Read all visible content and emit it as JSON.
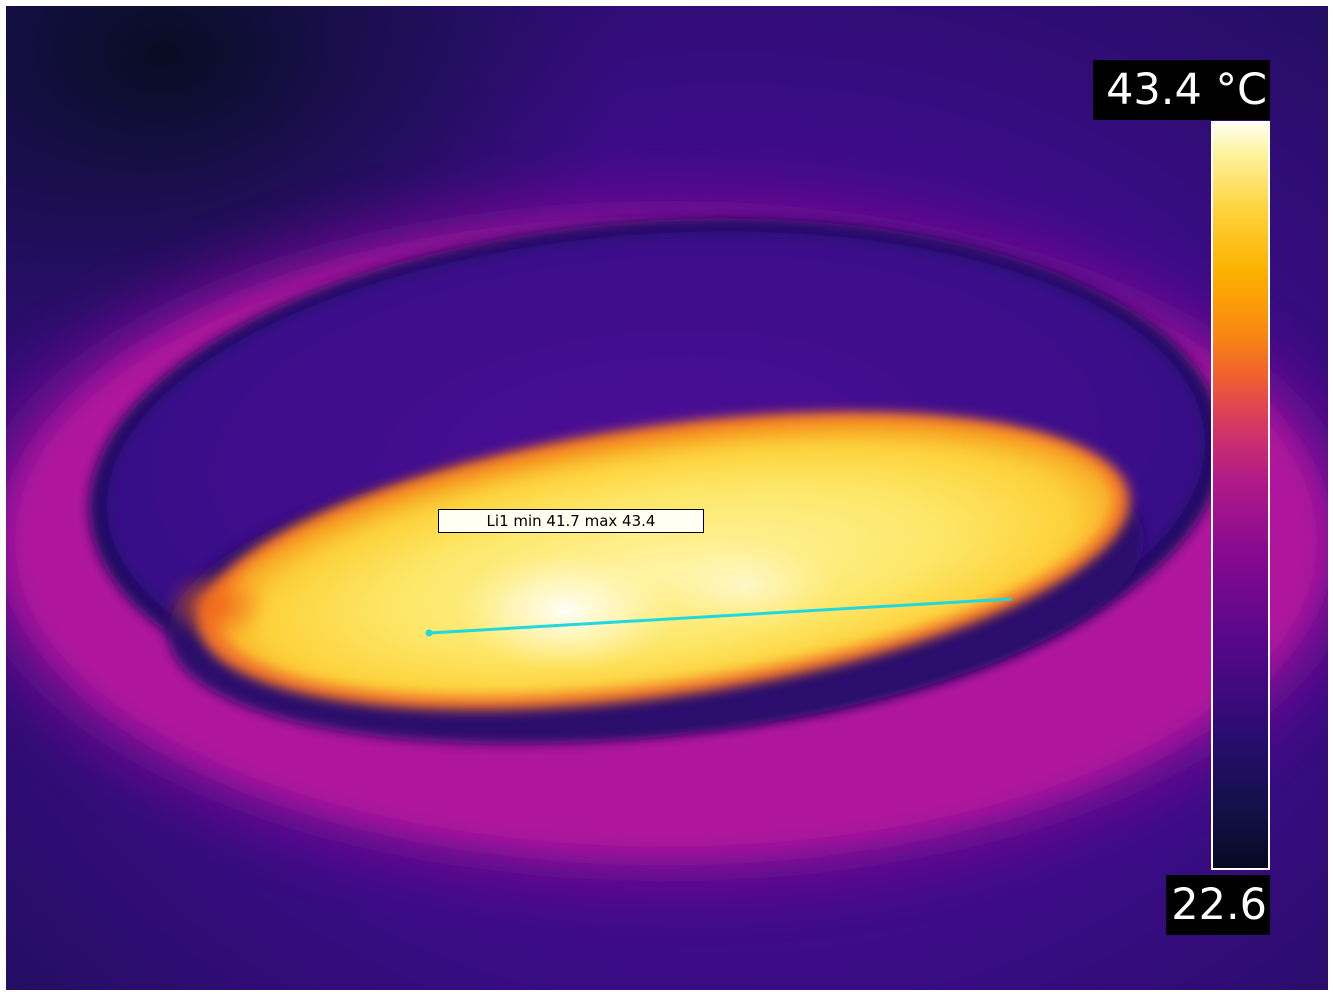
{
  "image": {
    "line_measurement": {
      "label": "Li1 min 41.7 max 43.4",
      "color": "#21d8dc"
    }
  },
  "scale": {
    "max_label": "43.4 °C",
    "min_label": "22.6",
    "palette": "iron"
  }
}
